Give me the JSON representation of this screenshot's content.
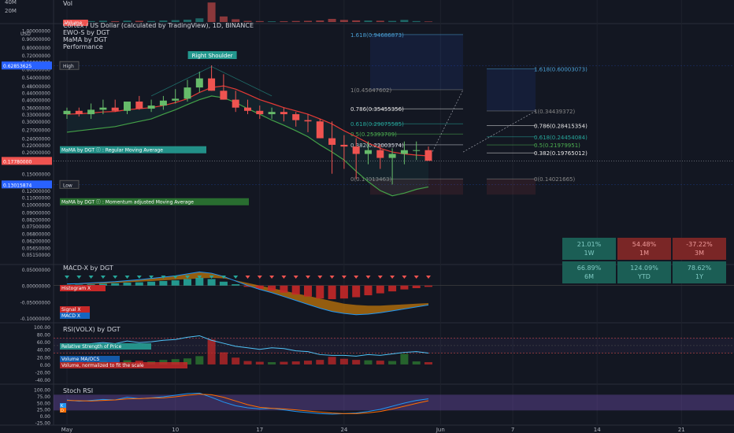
{
  "header": {
    "title": "Cortex / US Dollar (calculated by TradingView), 1D, BINANCE",
    "indicators": [
      "EWO-S by DGT",
      "MaMA by DGT",
      "Performance"
    ],
    "vol_label": "Vol",
    "vol_scale": [
      "40M",
      "20M"
    ],
    "volume_badge": "Volume"
  },
  "price_axis": {
    "currency": "USD",
    "ticks": [
      "1.00000000",
      "0.90000000",
      "0.80000000",
      "0.72000000",
      "0.66000000",
      "0.60000000",
      "0.54000000",
      "0.48000000",
      "0.44000000",
      "0.40000000",
      "0.36000000",
      "0.33000000",
      "0.30000000",
      "0.27000000",
      "0.24000000",
      "0.22000000",
      "0.20000000",
      "0.15000000",
      "0.13500000",
      "0.12000000",
      "0.11000000",
      "0.10000000",
      "0.09000000",
      "0.08200000",
      "0.07500000",
      "0.06800000",
      "0.06200000",
      "0.05650000",
      "0.05150000"
    ],
    "high_value": "0.62853625",
    "high_tag": "High",
    "low_value": "0.13015874",
    "low_tag": "Low",
    "current_value": "0.17780000"
  },
  "annotations": {
    "right_shoulder": "Right Shoulder",
    "mama_label": "MaMA by DGT ⓘ : Regular Moving Average",
    "mama_label2": "MaMA by DGT ⓘ : Momentum adjusted Moving Average"
  },
  "fib_left": [
    {
      "label": "1.618(0.94686873)",
      "price": 0.94686873,
      "color": "#4a9fd4"
    },
    {
      "label": "1(0.45647602)",
      "price": 0.45647602,
      "color": "#888888"
    },
    {
      "label": "0.786(0.35455356)",
      "price": 0.35455356,
      "color": "#e6e6e6"
    },
    {
      "label": "0.618(0.29075585)",
      "price": 0.29075585,
      "color": "#26a69a"
    },
    {
      "label": "0.5(0.25393709)",
      "price": 0.25393709,
      "color": "#4caf50"
    },
    {
      "label": "0.382(0.22003574)",
      "price": 0.22003574,
      "color": "#d1d4dc"
    },
    {
      "label": "0(0.14013463)",
      "price": 0.14013463,
      "color": "#888888"
    }
  ],
  "fib_right": [
    {
      "label": "1.618(0.60003073)",
      "price": 0.60003073,
      "color": "#4a9fd4"
    },
    {
      "label": "1(0.34439372)",
      "price": 0.34439372,
      "color": "#888888"
    },
    {
      "label": "0.786(0.28415354)",
      "price": 0.28415354,
      "color": "#e6e6e6"
    },
    {
      "label": "0.618(0.24454084)",
      "price": 0.24454084,
      "color": "#26a69a"
    },
    {
      "label": "0.5(0.21979951)",
      "price": 0.21979951,
      "color": "#4caf50"
    },
    {
      "label": "0.382(0.19765012)",
      "price": 0.19765012,
      "color": "#e6e6e6"
    },
    {
      "label": "0(0.14021665)",
      "price": 0.14021665,
      "color": "#888888"
    }
  ],
  "performance": [
    {
      "value": "21.01%",
      "period": "1W",
      "positive": true
    },
    {
      "value": "54.48%",
      "period": "1M",
      "positive": false
    },
    {
      "value": "-37.22%",
      "period": "3M",
      "positive": false
    },
    {
      "value": "66.89%",
      "period": "6M",
      "positive": true
    },
    {
      "value": "124.09%",
      "period": "YTD",
      "positive": true
    },
    {
      "value": "78.62%",
      "period": "1Y",
      "positive": true
    }
  ],
  "macd": {
    "title": "MACD-X by DGT",
    "ticks": [
      "0.05000000",
      "0.00000000",
      "-0.05000000",
      "-0.10000000"
    ],
    "histogram_label": "Histogram X",
    "signal_label": "Signal X",
    "macd_label": "MACD X"
  },
  "rsi": {
    "title": "RSI(VOLX) by DGT",
    "ticks": [
      "100.00",
      "80.00",
      "60.00",
      "40.00",
      "20.00",
      "0.00",
      "-20.00",
      "-40.00"
    ],
    "label1": "Relative Strength of Price",
    "label2": "Volume MA/OCS",
    "label3": "Volume, normalized to fit the scale"
  },
  "stoch": {
    "title": "Stoch RSI",
    "ticks": [
      "100.00",
      "75.00",
      "50.00",
      "25.00",
      "0.00",
      "-25.00"
    ],
    "badge_k": "K",
    "badge_d": "D"
  },
  "time_axis": {
    "labels": [
      {
        "text": "May",
        "day": 0
      },
      {
        "text": "10",
        "day": 9
      },
      {
        "text": "17",
        "day": 16
      },
      {
        "text": "24",
        "day": 23
      },
      {
        "text": "Jun",
        "day": 31
      },
      {
        "text": "7",
        "day": 37
      },
      {
        "text": "14",
        "day": 44
      },
      {
        "text": "21",
        "day": 51
      }
    ]
  },
  "chart_data": {
    "type": "candlestick",
    "series_name": "CTXC/USD",
    "days": [
      0,
      1,
      2,
      3,
      4,
      5,
      6,
      7,
      8,
      9,
      10,
      11,
      12,
      13,
      14,
      15,
      16,
      17,
      18,
      19,
      20,
      21,
      22,
      23,
      24,
      25,
      26,
      27,
      28,
      29,
      30
    ],
    "open": [
      0.33,
      0.345,
      0.33,
      0.35,
      0.36,
      0.345,
      0.39,
      0.355,
      0.37,
      0.395,
      0.405,
      0.47,
      0.53,
      0.45,
      0.4,
      0.36,
      0.345,
      0.33,
      0.34,
      0.33,
      0.305,
      0.3,
      0.24,
      0.22,
      0.215,
      0.195,
      0.205,
      0.185,
      0.195,
      0.205,
      0.205
    ],
    "high": [
      0.36,
      0.36,
      0.38,
      0.4,
      0.4,
      0.39,
      0.42,
      0.4,
      0.42,
      0.46,
      0.52,
      0.58,
      0.63,
      0.56,
      0.45,
      0.4,
      0.37,
      0.36,
      0.36,
      0.34,
      0.33,
      0.31,
      0.3,
      0.25,
      0.24,
      0.23,
      0.22,
      0.21,
      0.23,
      0.23,
      0.215
    ],
    "low": [
      0.31,
      0.32,
      0.31,
      0.33,
      0.34,
      0.33,
      0.35,
      0.34,
      0.35,
      0.38,
      0.39,
      0.44,
      0.45,
      0.4,
      0.34,
      0.33,
      0.31,
      0.31,
      0.3,
      0.28,
      0.26,
      0.24,
      0.15,
      0.16,
      0.14,
      0.17,
      0.16,
      0.13,
      0.17,
      0.18,
      0.18
    ],
    "close": [
      0.345,
      0.33,
      0.35,
      0.36,
      0.345,
      0.39,
      0.355,
      0.37,
      0.395,
      0.405,
      0.47,
      0.53,
      0.45,
      0.4,
      0.36,
      0.345,
      0.33,
      0.34,
      0.33,
      0.305,
      0.3,
      0.24,
      0.22,
      0.215,
      0.195,
      0.205,
      0.185,
      0.195,
      0.205,
      0.205,
      0.178
    ],
    "volume": [
      1.2,
      0.8,
      1.0,
      1.4,
      0.9,
      1.5,
      1.3,
      1.1,
      1.6,
      2.0,
      2.5,
      4.0,
      21.0,
      6.0,
      3.0,
      1.2,
      1.0,
      0.8,
      0.9,
      1.1,
      1.3,
      1.7,
      3.4,
      2.3,
      1.8,
      1.6,
      1.4,
      1.2,
      2.3,
      1.0,
      0.6
    ],
    "regular_ma": [
      0.33,
      0.332,
      0.335,
      0.34,
      0.342,
      0.35,
      0.355,
      0.36,
      0.37,
      0.385,
      0.405,
      0.44,
      0.47,
      0.48,
      0.46,
      0.43,
      0.4,
      0.38,
      0.36,
      0.345,
      0.33,
      0.31,
      0.29,
      0.265,
      0.245,
      0.225,
      0.21,
      0.2,
      0.195,
      0.192,
      0.19
    ],
    "momentum_ma": [
      0.26,
      0.265,
      0.27,
      0.275,
      0.28,
      0.29,
      0.3,
      0.31,
      0.33,
      0.35,
      0.375,
      0.4,
      0.42,
      0.41,
      0.385,
      0.355,
      0.33,
      0.305,
      0.285,
      0.265,
      0.245,
      0.22,
      0.2,
      0.18,
      0.155,
      0.135,
      0.12,
      0.112,
      0.116,
      0.122,
      0.126
    ],
    "macd_hist": [
      0.002,
      0.003,
      0.004,
      0.006,
      0.007,
      0.009,
      0.01,
      0.012,
      0.014,
      0.016,
      0.02,
      0.024,
      0.02,
      0.012,
      0.004,
      -0.004,
      -0.01,
      -0.016,
      -0.022,
      -0.028,
      -0.034,
      -0.04,
      -0.042,
      -0.04,
      -0.036,
      -0.03,
      -0.024,
      -0.018,
      -0.012,
      -0.008,
      -0.004
    ],
    "macd_line": [
      0.005,
      0.006,
      0.008,
      0.01,
      0.012,
      0.015,
      0.018,
      0.022,
      0.026,
      0.03,
      0.036,
      0.042,
      0.038,
      0.028,
      0.014,
      0.0,
      -0.012,
      -0.022,
      -0.034,
      -0.046,
      -0.058,
      -0.07,
      -0.08,
      -0.086,
      -0.09,
      -0.088,
      -0.084,
      -0.078,
      -0.072,
      -0.066,
      -0.06
    ],
    "signal_line": [
      0.003,
      0.004,
      0.005,
      0.006,
      0.008,
      0.01,
      0.012,
      0.014,
      0.016,
      0.018,
      0.02,
      0.022,
      0.024,
      0.022,
      0.016,
      0.008,
      0.0,
      -0.008,
      -0.016,
      -0.024,
      -0.032,
      -0.04,
      -0.048,
      -0.056,
      -0.06,
      -0.062,
      -0.062,
      -0.06,
      -0.058,
      -0.056,
      -0.054
    ],
    "rsi_price": [
      52,
      50,
      55,
      58,
      55,
      62,
      58,
      60,
      64,
      66,
      72,
      76,
      64,
      56,
      48,
      44,
      40,
      44,
      42,
      36,
      34,
      26,
      24,
      24,
      22,
      26,
      24,
      28,
      32,
      34,
      30
    ],
    "rsi_volume": [
      8,
      6,
      7,
      10,
      7,
      11,
      10,
      8,
      12,
      14,
      16,
      22,
      66,
      32,
      18,
      9,
      7,
      6,
      7,
      8,
      10,
      12,
      20,
      15,
      12,
      11,
      10,
      9,
      28,
      8,
      6
    ],
    "stoch_k": [
      60,
      55,
      58,
      62,
      60,
      70,
      65,
      68,
      72,
      78,
      84,
      86,
      70,
      52,
      38,
      30,
      26,
      28,
      22,
      16,
      12,
      8,
      6,
      8,
      10,
      16,
      24,
      36,
      48,
      58,
      64
    ],
    "stoch_d": [
      58,
      57,
      56,
      58,
      60,
      64,
      65,
      67,
      68,
      72,
      78,
      82,
      80,
      70,
      56,
      42,
      32,
      28,
      26,
      22,
      18,
      14,
      10,
      8,
      8,
      11,
      16,
      25,
      36,
      47,
      57
    ]
  }
}
